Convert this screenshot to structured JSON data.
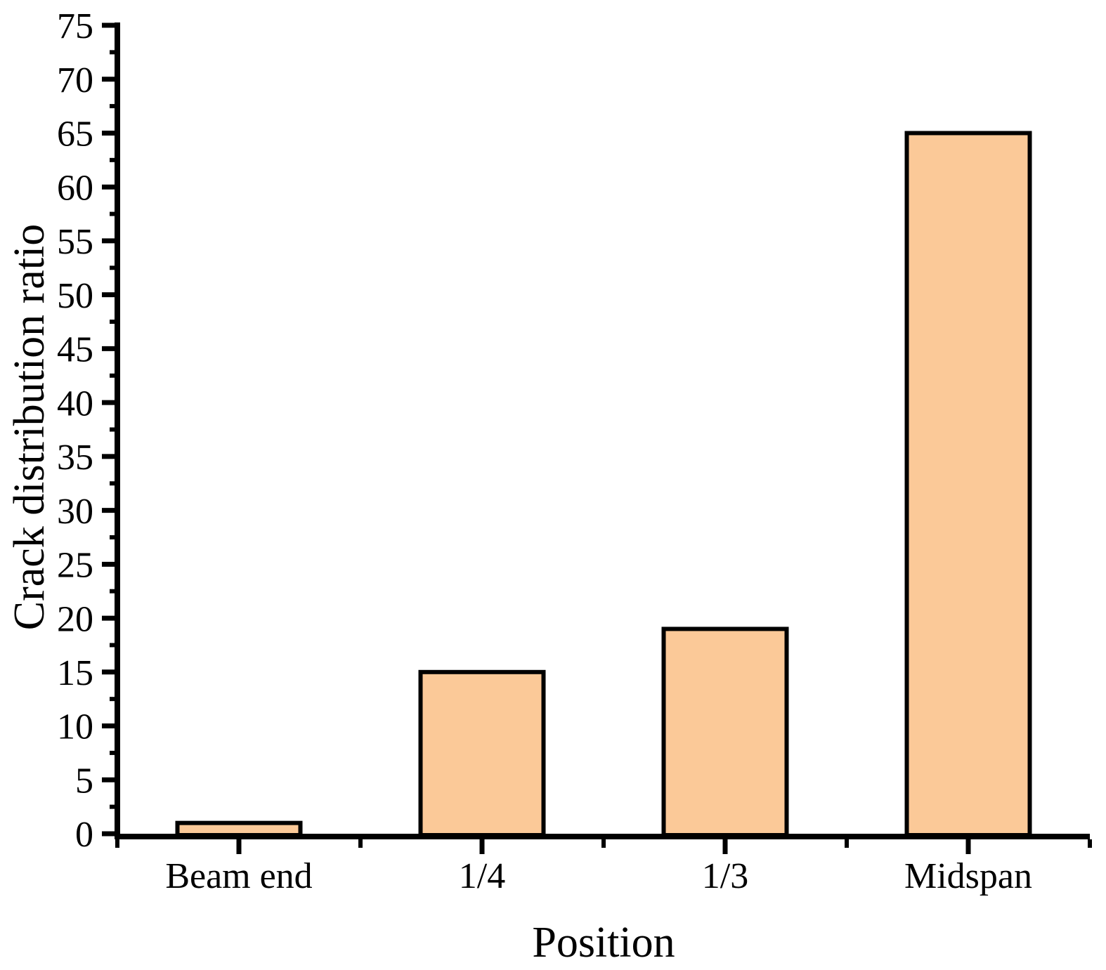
{
  "chart_data": {
    "type": "bar",
    "title": "",
    "categories": [
      "Beam end",
      "1/4",
      "1/3",
      "Midspan"
    ],
    "values": [
      1,
      15,
      19,
      65
    ],
    "xlabel": "Position",
    "ylabel": "Crack distribution ratio",
    "ylim": [
      0,
      75
    ],
    "y_major_step": 5,
    "y_minor_step": 2.5,
    "y_tick_labels": [
      "0",
      "5",
      "10",
      "15",
      "20",
      "25",
      "30",
      "35",
      "40",
      "45",
      "50",
      "55",
      "60",
      "65",
      "70",
      "75"
    ],
    "grid": false,
    "legend": false,
    "bar_fill": "#FBC998",
    "bar_stroke": "#000000",
    "axis_color": "#000000",
    "background": "#FFFFFF"
  }
}
